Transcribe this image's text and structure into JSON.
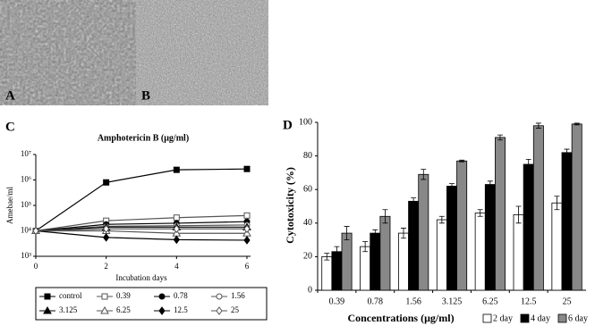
{
  "images": [
    {
      "label": "A"
    },
    {
      "label": "B"
    }
  ],
  "chart_data": [
    {
      "type": "line",
      "label": "C",
      "title": "Amphotericin B (μg/ml)",
      "ylabel": "Amebae/ml",
      "xlabel": "Incubation days",
      "x": [
        0,
        2,
        4,
        6
      ],
      "xlim": [
        0,
        6
      ],
      "xticks": [
        0,
        2,
        4,
        6
      ],
      "ylog": true,
      "ylim": [
        1000,
        10000000
      ],
      "yticks": [
        {
          "value": 1000,
          "label": "10³"
        },
        {
          "value": 10000,
          "label": "10⁴"
        },
        {
          "value": 100000,
          "label": "10⁵"
        },
        {
          "value": 1000000,
          "label": "10⁶"
        },
        {
          "value": 10000000,
          "label": "10⁷"
        }
      ],
      "legend": "bottom",
      "series": [
        {
          "name": "control",
          "color": "#000000",
          "marker": "square",
          "filled": true,
          "values": [
            10000,
            800000,
            2500000,
            2700000
          ]
        },
        {
          "name": "0.39",
          "color": "#555555",
          "marker": "square",
          "filled": false,
          "values": [
            10000,
            25000,
            33000,
            40000
          ]
        },
        {
          "name": "0.78",
          "color": "#000000",
          "marker": "circle",
          "filled": true,
          "values": [
            10000,
            18000,
            20000,
            23000
          ]
        },
        {
          "name": "1.56",
          "color": "#555555",
          "marker": "circle",
          "filled": false,
          "values": [
            10000,
            15000,
            16000,
            17000
          ]
        },
        {
          "name": "3.125",
          "color": "#000000",
          "marker": "triangle",
          "filled": true,
          "values": [
            10000,
            14000,
            14000,
            14000
          ]
        },
        {
          "name": "6.25",
          "color": "#555555",
          "marker": "triangle",
          "filled": false,
          "values": [
            10000,
            10000,
            8000,
            8000
          ]
        },
        {
          "name": "12.5",
          "color": "#000000",
          "marker": "diamond",
          "filled": true,
          "values": [
            10000,
            5500,
            4500,
            4300
          ]
        },
        {
          "name": "25",
          "color": "#555555",
          "marker": "diamond",
          "filled": false,
          "values": [
            10000,
            12000,
            12000,
            12000
          ]
        }
      ]
    },
    {
      "type": "bar",
      "label": "D",
      "ylabel": "Cytotoxicity (%)",
      "xlabel": "Concentrations (μg/ml)",
      "categories": [
        "0.39",
        "0.78",
        "1.56",
        "3.125",
        "6.25",
        "12.5",
        "25"
      ],
      "ylim": [
        0,
        100
      ],
      "yticks": [
        0,
        20,
        40,
        60,
        80,
        100
      ],
      "legend": "bottom",
      "series": [
        {
          "name": "2 day",
          "color": "#ffffff",
          "values": [
            20,
            26,
            34,
            42,
            46,
            45,
            52
          ],
          "errors": [
            2,
            3,
            3,
            2,
            2,
            5,
            4
          ]
        },
        {
          "name": "4 day",
          "color": "#000000",
          "values": [
            23,
            34,
            53,
            62,
            63,
            75,
            82
          ],
          "errors": [
            3,
            2,
            2,
            1.5,
            2,
            3,
            2
          ]
        },
        {
          "name": "6 day",
          "color": "#888888",
          "values": [
            34,
            44,
            69,
            77,
            91,
            98,
            99
          ],
          "errors": [
            4,
            4,
            3,
            0.5,
            1.5,
            1.5,
            0.5
          ]
        }
      ]
    }
  ]
}
